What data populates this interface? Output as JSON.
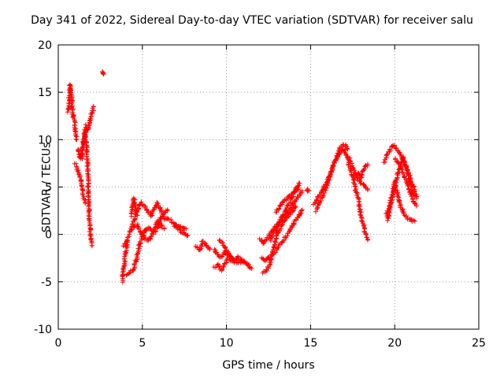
{
  "chart_data": {
    "type": "scatter",
    "title": "Day 341 of 2022, Sidereal Day-to-day VTEC variation (SDTVAR) for receiver salu",
    "xlabel": "GPS time / hours",
    "ylabel": "SDTVAR / TECUs",
    "xlim": [
      0,
      25
    ],
    "ylim": [
      -10,
      20
    ],
    "xticks": [
      0,
      5,
      10,
      15,
      20,
      25
    ],
    "yticks": [
      -10,
      -5,
      0,
      5,
      10,
      15,
      20
    ],
    "grid": true,
    "marker": "+",
    "color": "#ff0000",
    "segments": [
      {
        "x": [
          0.6,
          0.7,
          0.75,
          0.8,
          0.85,
          0.9,
          1.0,
          1.1
        ],
        "y": [
          13.0,
          15.8,
          15.2,
          14.0,
          12.8,
          12.5,
          11.5,
          10.0
        ]
      },
      {
        "x": [
          1.0,
          1.1,
          1.2,
          1.3,
          1.4,
          1.5,
          1.6
        ],
        "y": [
          7.5,
          7.0,
          6.5,
          6.0,
          5.0,
          4.0,
          3.3
        ]
      },
      {
        "x": [
          1.2,
          1.3,
          1.45,
          1.55,
          1.65,
          1.75,
          1.85,
          1.95,
          2.05,
          2.1
        ],
        "y": [
          9.0,
          8.0,
          9.0,
          10.5,
          11.5,
          11.0,
          11.8,
          12.5,
          13.0,
          13.5
        ]
      },
      {
        "x": [
          1.4,
          1.5,
          1.6,
          1.7,
          1.75,
          1.8,
          1.85,
          1.9,
          2.0
        ],
        "y": [
          8.0,
          10.0,
          11.0,
          9.0,
          7.0,
          4.0,
          2.0,
          0.0,
          -1.2
        ]
      },
      {
        "x": [
          2.6,
          2.65,
          2.7
        ],
        "y": [
          17.2,
          17.0,
          16.9
        ]
      },
      {
        "x": [
          3.8,
          3.9,
          4.0,
          4.1
        ],
        "y": [
          -5.0,
          -3.5,
          -2.0,
          -0.8
        ]
      },
      {
        "x": [
          3.9,
          4.1,
          4.3,
          4.5,
          4.7,
          4.9,
          5.1,
          5.3,
          5.5,
          5.7,
          5.9,
          6.1,
          6.3,
          6.6,
          7.0,
          7.3,
          7.6
        ],
        "y": [
          -1.2,
          -0.6,
          0.4,
          1.5,
          2.5,
          3.4,
          3.0,
          2.5,
          2.0,
          2.6,
          3.3,
          2.6,
          1.6,
          1.6,
          1.0,
          0.8,
          0.6
        ]
      },
      {
        "x": [
          4.1,
          4.3,
          4.5,
          4.7,
          4.9,
          5.1,
          5.3,
          5.5,
          5.7,
          5.9,
          6.1,
          6.3,
          6.5
        ],
        "y": [
          -4.3,
          -4.0,
          -3.6,
          -2.2,
          -0.7,
          0.3,
          0.7,
          0.5,
          0.2,
          0.7,
          1.7,
          2.3,
          2.6
        ]
      },
      {
        "x": [
          4.5,
          4.7,
          4.9,
          5.1,
          5.3,
          5.5,
          5.7,
          5.9,
          6.1,
          6.3
        ],
        "y": [
          0.8,
          1.0,
          0.3,
          -0.3,
          -0.6,
          -0.4,
          0.6,
          1.4,
          1.0,
          0.6
        ]
      },
      {
        "x": [
          4.3,
          4.4,
          4.5,
          4.6,
          4.7
        ],
        "y": [
          2.0,
          3.0,
          3.8,
          3.0,
          2.0
        ]
      },
      {
        "x": [
          6.9,
          7.1,
          7.3,
          7.5,
          7.7
        ],
        "y": [
          0.9,
          0.6,
          0.3,
          0.1,
          -0.1
        ]
      },
      {
        "x": [
          8.2,
          8.4,
          8.6,
          8.8,
          9.0
        ],
        "y": [
          -1.2,
          -1.7,
          -0.7,
          -1.2,
          -1.6
        ]
      },
      {
        "x": [
          9.3,
          9.5,
          9.7,
          9.9,
          10.1,
          10.3,
          10.5,
          10.7,
          10.9,
          11.1,
          11.3,
          11.5
        ],
        "y": [
          -1.5,
          -2.3,
          -2.4,
          -1.8,
          -2.2,
          -2.5,
          -2.9,
          -3.0,
          -2.8,
          -3.0,
          -3.3,
          -3.6
        ]
      },
      {
        "x": [
          9.3,
          9.5,
          9.7,
          9.9,
          10.1,
          10.4,
          10.7,
          11.0,
          11.3
        ],
        "y": [
          -3.5,
          -3.2,
          -3.8,
          -3.0,
          -2.6,
          -2.8,
          -2.4,
          -2.8,
          -3.2
        ]
      },
      {
        "x": [
          9.6,
          9.8,
          10.0,
          10.2,
          10.4
        ],
        "y": [
          -0.6,
          -1.0,
          -1.6,
          -2.2,
          -2.6
        ]
      },
      {
        "x": [
          12.0,
          12.2,
          12.4,
          12.7,
          13.0,
          13.3,
          13.6,
          13.9,
          14.1,
          14.3,
          14.5
        ],
        "y": [
          -0.4,
          -1.0,
          -0.5,
          0.3,
          1.0,
          1.6,
          2.2,
          3.0,
          3.6,
          4.1,
          4.6
        ]
      },
      {
        "x": [
          12.1,
          12.3,
          12.6,
          12.9,
          13.2,
          13.5,
          13.8,
          14.1,
          14.3,
          14.5
        ],
        "y": [
          -2.5,
          -2.7,
          -2.3,
          -1.8,
          -1.0,
          -0.3,
          0.6,
          1.4,
          2.0,
          2.6
        ]
      },
      {
        "x": [
          12.2,
          12.4,
          12.6,
          12.8,
          13.0,
          13.3,
          13.6,
          13.9,
          14.1
        ],
        "y": [
          -4.0,
          -3.7,
          -3.0,
          -1.5,
          0.0,
          1.0,
          1.8,
          2.4,
          3.0
        ]
      },
      {
        "x": [
          12.6,
          12.9,
          13.2,
          13.5,
          13.8,
          14.0,
          14.2,
          14.35
        ],
        "y": [
          -0.6,
          0.5,
          1.5,
          2.5,
          3.5,
          4.3,
          5.1,
          5.4
        ]
      },
      {
        "x": [
          12.9,
          13.2,
          13.5,
          13.8,
          14.1,
          14.3
        ],
        "y": [
          2.3,
          3.0,
          3.6,
          4.1,
          4.6,
          4.9
        ]
      },
      {
        "x": [
          14.8,
          14.85,
          14.9
        ],
        "y": [
          4.5,
          4.7,
          4.6
        ]
      },
      {
        "x": [
          15.3,
          15.6,
          15.9,
          16.2,
          16.5,
          16.8,
          17.0,
          17.2
        ],
        "y": [
          2.5,
          3.5,
          4.8,
          6.5,
          8.0,
          9.2,
          9.5,
          9.0
        ]
      },
      {
        "x": [
          15.2,
          15.5,
          15.8,
          16.1,
          16.4,
          16.7,
          16.9,
          17.1,
          17.3,
          17.6,
          17.9,
          18.2,
          18.4
        ],
        "y": [
          3.2,
          4.0,
          5.0,
          6.0,
          7.5,
          8.5,
          9.0,
          8.6,
          8.0,
          6.6,
          5.6,
          5.2,
          4.7
        ]
      },
      {
        "x": [
          17.2,
          17.5,
          17.8,
          18.0,
          18.2,
          18.4
        ],
        "y": [
          8.0,
          6.0,
          4.0,
          2.0,
          0.5,
          -0.6
        ]
      },
      {
        "x": [
          17.6,
          17.8,
          18.0,
          18.2,
          18.4
        ],
        "y": [
          6.2,
          6.5,
          6.0,
          7.0,
          7.4
        ]
      },
      {
        "x": [
          19.4,
          19.6,
          19.8,
          19.95,
          20.1,
          20.3,
          20.5,
          20.7,
          20.9,
          21.1,
          21.3
        ],
        "y": [
          7.6,
          8.5,
          9.2,
          9.4,
          9.1,
          8.5,
          7.8,
          7.0,
          6.0,
          5.0,
          4.0
        ]
      },
      {
        "x": [
          19.5,
          19.7,
          19.9,
          20.1,
          20.3,
          20.5,
          20.7,
          20.9,
          21.1,
          21.3
        ],
        "y": [
          2.0,
          3.0,
          4.5,
          5.7,
          7.0,
          8.2,
          7.0,
          5.5,
          4.5,
          3.8
        ]
      },
      {
        "x": [
          19.6,
          19.8,
          20.0,
          20.2,
          20.4,
          20.6,
          20.9,
          21.2
        ],
        "y": [
          1.5,
          3.5,
          5.5,
          4.0,
          2.8,
          2.0,
          1.5,
          1.4
        ]
      },
      {
        "x": [
          20.0,
          20.3,
          20.6,
          20.9,
          21.1,
          21.3
        ],
        "y": [
          8.0,
          7.3,
          6.0,
          4.6,
          3.5,
          3.0
        ]
      }
    ]
  }
}
